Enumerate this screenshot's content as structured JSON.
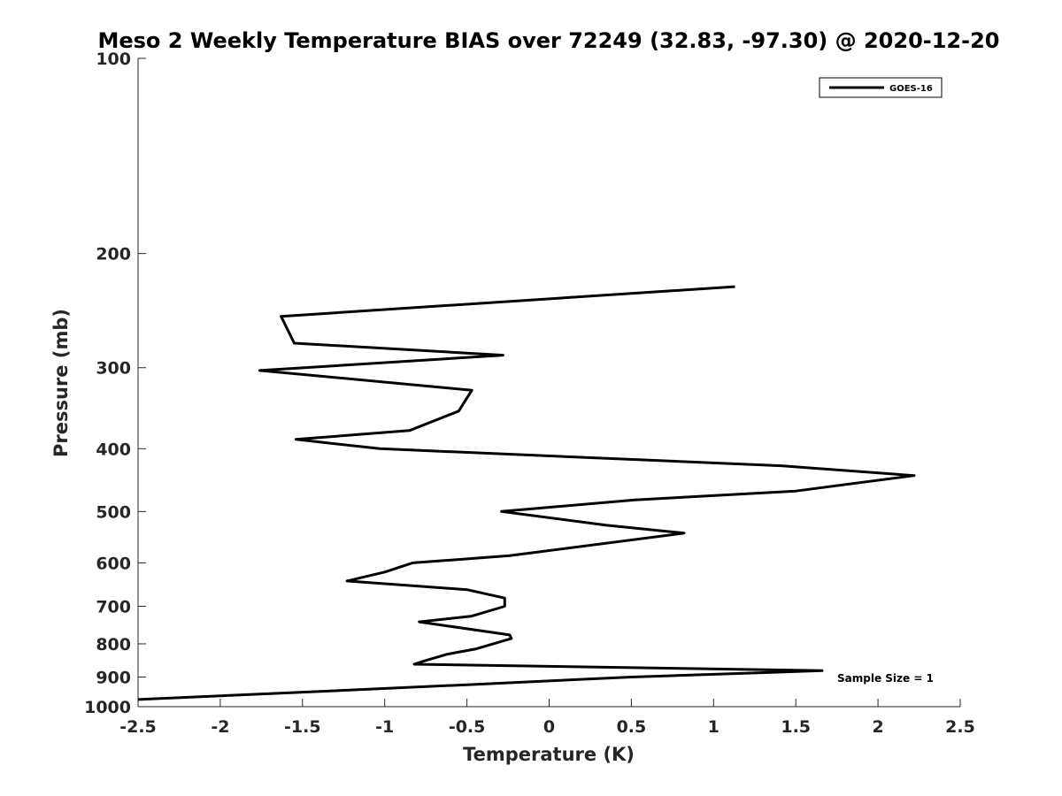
{
  "chart_data": {
    "type": "line",
    "title": "Meso 2 Weekly Temperature BIAS over 72249 (32.83, -97.30) @ 2020-12-20",
    "xlabel": "Temperature (K)",
    "ylabel": "Pressure (mb)",
    "xlim": [
      -2.5,
      2.5
    ],
    "ylim": [
      100,
      1000
    ],
    "y_scale": "log",
    "y_reversed": true,
    "xticks": [
      "-2.5",
      "-2",
      "-1.5",
      "-1",
      "-0.5",
      "0",
      "0.5",
      "1",
      "1.5",
      "2",
      "2.5"
    ],
    "yticks": [
      "100",
      "200",
      "300",
      "400",
      "500",
      "600",
      "700",
      "800",
      "900",
      "1000"
    ],
    "grid": false,
    "legend": {
      "location": "top-right",
      "entries": [
        "GOES-16"
      ]
    },
    "annotation": "Sample Size = 1",
    "series": [
      {
        "name": "GOES-16",
        "color": "#000000",
        "points": [
          [
            1.13,
            225
          ],
          [
            -1.63,
            250
          ],
          [
            -1.55,
            275
          ],
          [
            -0.28,
            287
          ],
          [
            -1.76,
            303
          ],
          [
            -0.47,
            325
          ],
          [
            -0.55,
            350
          ],
          [
            -0.85,
            375
          ],
          [
            -1.54,
            387
          ],
          [
            -1.03,
            400
          ],
          [
            1.41,
            425
          ],
          [
            2.22,
            440
          ],
          [
            1.5,
            465
          ],
          [
            0.52,
            480
          ],
          [
            -0.29,
            500
          ],
          [
            0.35,
            525
          ],
          [
            0.82,
            540
          ],
          [
            -0.24,
            585
          ],
          [
            -0.83,
            600
          ],
          [
            -1.0,
            620
          ],
          [
            -1.23,
            640
          ],
          [
            -0.5,
            660
          ],
          [
            -0.27,
            680
          ],
          [
            -0.27,
            700
          ],
          [
            -0.47,
            725
          ],
          [
            -0.79,
            740
          ],
          [
            -0.24,
            775
          ],
          [
            -0.23,
            785
          ],
          [
            -0.45,
            815
          ],
          [
            -0.62,
            830
          ],
          [
            -0.76,
            850
          ],
          [
            -0.82,
            860
          ],
          [
            1.66,
            880
          ],
          [
            0.5,
            900
          ],
          [
            -0.5,
            925
          ],
          [
            -1.3,
            945
          ],
          [
            -2.5,
            975
          ]
        ]
      }
    ]
  }
}
